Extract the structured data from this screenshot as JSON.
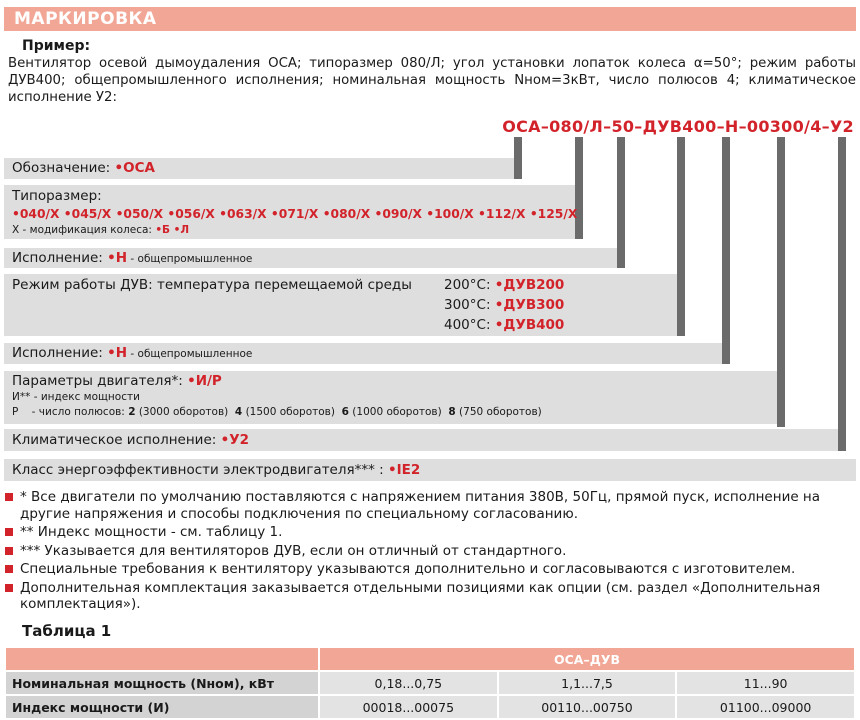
{
  "header": "МАРКИРОВКА",
  "example": {
    "title": "Пример:",
    "text": "Вентилятор осевой дымоудаления ОСА; типоразмер 080/Л; угол установки лопаток колеса α=50°; режим работы ДУВ400; общепромышленного исполнения; номинальная мощность Nном=3кВт, число полюсов 4; климатическое исполнение У2:"
  },
  "code": "ОСА–080/Л–50–ДУВ400–Н–00300/4–У2",
  "rows": {
    "designation": {
      "label": "Обозначение: ",
      "value": "•ОСА"
    },
    "size": {
      "label": "Типоразмер:",
      "values": "•040/Х •045/Х •050/Х •056/Х •063/Х •071/Х •080/Х •090/Х •100/Х •112/Х •125/Х",
      "note_prefix": "Х - модификация колеса: ",
      "note_value": "•Б •Л"
    },
    "execution1": {
      "label": "Исполнение: ",
      "value": "•Н",
      "suffix": " - общепромышленное"
    },
    "mode": {
      "label": "Режим работы ДУВ: температура перемещаемой среды",
      "t1": "200°С: ",
      "v1": "•ДУВ200",
      "t2": "300°С: ",
      "v2": "•ДУВ300",
      "t3": "400°С: ",
      "v3": "•ДУВ400"
    },
    "execution2": {
      "label": "Исполнение: ",
      "value": "•Н",
      "suffix": " - общепромышленное"
    },
    "motor": {
      "label": "Параметры двигателя*: ",
      "value": "•И/Р",
      "line1": "И** - индекс мощности",
      "line2_prefix": "Р    - число полюсов: ",
      "p1": "2",
      "p1t": " (3000 оборотов)  ",
      "p2": "4",
      "p2t": " (1500 оборотов)  ",
      "p3": "6",
      "p3t": " (1000 оборотов)  ",
      "p4": "8",
      "p4t": " (750 оборотов)"
    },
    "climate": {
      "label": "Климатическое исполнение: ",
      "value": "•У2"
    },
    "energy": {
      "label": "Класс энергоэффективности электродвигателя*** : ",
      "value": "•IE2"
    }
  },
  "notes": [
    "* Все двигатели по умолчанию поставляются с напряжением питания 380В, 50Гц, прямой пуск, исполнение на другие напряжения и способы подключения по специальному согласованию.",
    "** Индекс мощности - см. таблицу 1.",
    "*** Указывается для вентиляторов ДУВ, если он отличный от стандартного.",
    "Специальные требования к вентилятору указываются дополнительно и согласовываются с изготовителем.",
    "Дополнительная комплектация заказывается отдельными позициями как опции (см. раздел «Дополнительная комплектация»)."
  ],
  "table": {
    "title": "Таблица 1",
    "header": "ОСА–ДУВ",
    "rows": [
      {
        "label": "Номинальная мощность (Nном), кВт",
        "c1": "0,18...0,75",
        "c2": "1,1...7,5",
        "c3": "11...90"
      },
      {
        "label": "Индекс мощности (И)",
        "c1": "00018...00075",
        "c2": "00110...00750",
        "c3": "01100...09000"
      }
    ]
  },
  "colors": {
    "accent_red": "#d2232a",
    "header_salmon": "#f2a796",
    "band_grey": "#dedede",
    "bar_grey": "#6b6b6b"
  }
}
